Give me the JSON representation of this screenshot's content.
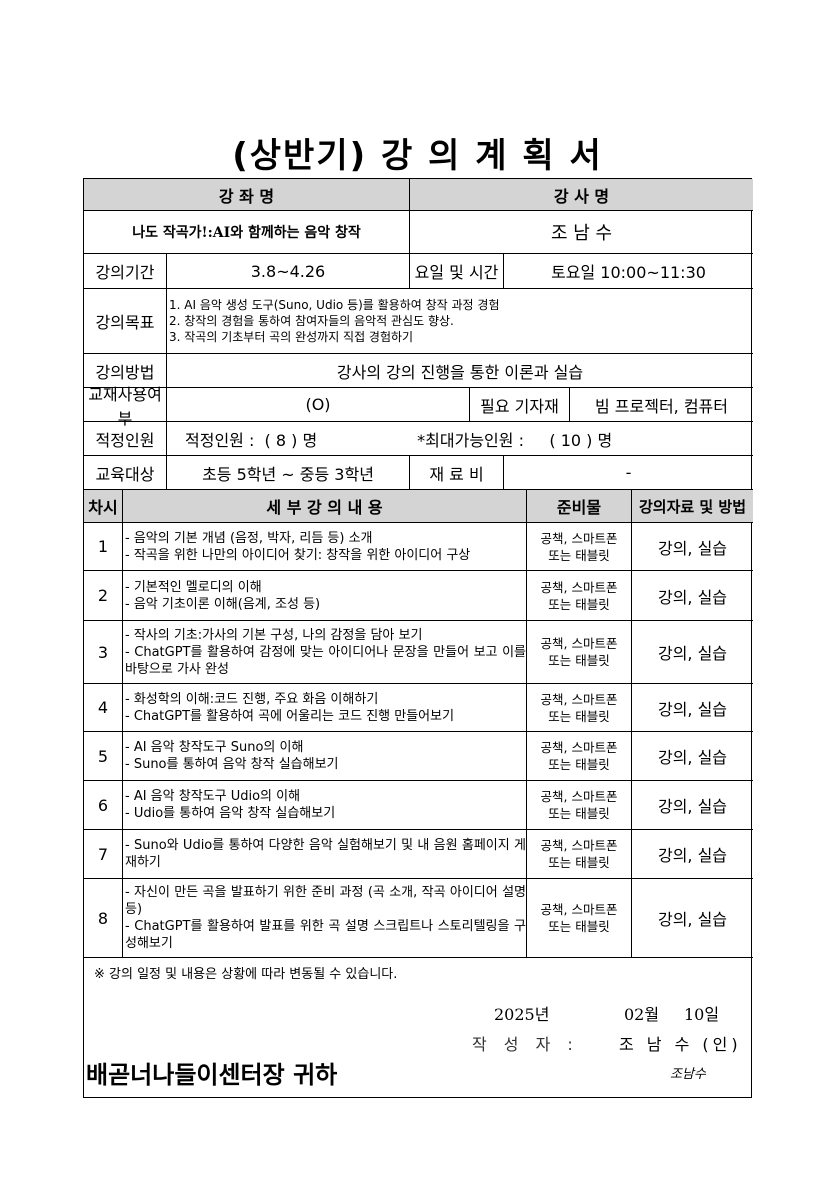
{
  "title": "(상반기) 강 의 계 획 서",
  "header": {
    "course_label": "강 좌 명",
    "instructor_label": "강 사 명"
  },
  "course_name": "나도 작곡가!:AI와 함께하는 음악 창작",
  "instructor_name": "조 남 수",
  "period": {
    "label": "강의기간",
    "value": "3.8~4.26",
    "time_label": "요일 및 시간",
    "time_value": "토요일 10:00~11:30"
  },
  "goals": {
    "label": "강의목표",
    "items": [
      "1. AI 음악 생성 도구(Suno, Udio 등)를 활용하여 창작 과정 경험",
      "2. 창작의 경험을 통하여 참여자들의 음악적 관심도 향상.",
      "3. 작곡의 기초부터 곡의 완성까지 직접 경험하기"
    ]
  },
  "method": {
    "label": "강의방법",
    "value": "강사의 강의 진행을 통한 이론과 실습"
  },
  "textbook": {
    "label": "교재사용여부",
    "value": "(O)",
    "equip_label": "필요 기자재",
    "equip_value": "빔 프로젝터, 컴퓨터"
  },
  "capacity": {
    "label": "적정인원",
    "value": "적정인원 :  ( 8 ) 명",
    "max": "*최대가능인원 :     ( 10 ) 명"
  },
  "target": {
    "label": "교육대상",
    "value": "초등 5학년 ~ 중등 3학년",
    "fee_label": "재 료 비",
    "fee_value": "-"
  },
  "schedule_header": {
    "session": "차시",
    "content": "세 부 강 의 내 용",
    "materials": "준비물",
    "method": "강의자료 및 방법"
  },
  "sessions": [
    {
      "no": "1",
      "content": "- 음악의 기본 개념 (음정, 박자, 리듬 등) 소개\n- 작곡을 위한 나만의 아이디어 찾기: 창작을 위한 아이디어 구상",
      "materials": "공책, 스마트폰\n또는 태블릿",
      "method": "강의, 실습"
    },
    {
      "no": "2",
      "content": "- 기본적인 멜로디의 이해\n- 음악 기초이론 이해(음계, 조성 등)",
      "materials": "공책, 스마트폰\n또는 태블릿",
      "method": "강의, 실습"
    },
    {
      "no": "3",
      "content": "- 작사의 기초:가사의 기본 구성, 나의 감정을 담아 보기\n- ChatGPT를 활용하여 감정에 맞는 아이디어나 문장을 만들어 보고 이를 바탕으로 가사 완성",
      "materials": "공책, 스마트폰\n또는 태블릿",
      "method": "강의, 실습"
    },
    {
      "no": "4",
      "content": "- 화성학의 이해:코드 진행, 주요 화음 이해하기\n- ChatGPT를 활용하여 곡에 어울리는 코드 진행 만들어보기",
      "materials": "공책, 스마트폰\n또는 태블릿",
      "method": "강의, 실습"
    },
    {
      "no": "5",
      "content": "- AI 음악 창작도구 Suno의 이해\n- Suno를 통하여 음악 창작 실습해보기",
      "materials": "공책, 스마트폰\n또는 태블릿",
      "method": "강의, 실습"
    },
    {
      "no": "6",
      "content": "- AI 음악 창작도구 Udio의 이해\n- Udio를 통하여 음악 창작 실습해보기",
      "materials": "공책, 스마트폰\n또는 태블릿",
      "method": "강의, 실습"
    },
    {
      "no": "7",
      "content": "- Suno와 Udio를 통하여 다양한 음악 실험해보기 및 내 음원 홈페이지 게재하기",
      "materials": "공책, 스마트폰\n또는 태블릿",
      "method": "강의, 실습"
    },
    {
      "no": "8",
      "content": "- 자신이 만든 곡을 발표하기 위한 준비 과정 (곡 소개, 작곡 아이디어 설명 등)\n- ChatGPT를 활용하여 발표를 위한 곡 설명 스크립트나 스토리텔링을 구성해보기",
      "materials": "공책, 스마트폰\n또는 태블릿",
      "method": "강의, 실습"
    }
  ],
  "footer": {
    "notice": "※ 강의 일정 및 내용은 상황에 따라 변동될 수 있습니다.",
    "year": "2025년",
    "month": "02월",
    "day": "10일",
    "author_label": "작 성 자 :",
    "author": "조 남 수 (인)",
    "recipient": "배곧너나들이센터장 귀하",
    "signature": "조남수"
  }
}
